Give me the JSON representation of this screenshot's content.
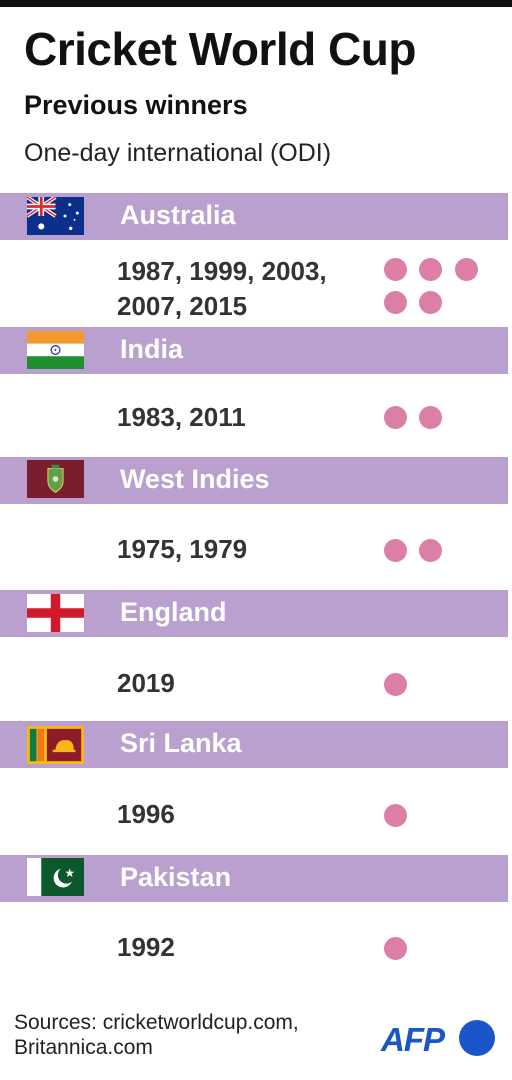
{
  "header": {
    "title": "Cricket World Cup",
    "subtitle": "Previous winners",
    "subtitle2": "One-day international (ODI)"
  },
  "colors": {
    "band": "#b9a0cf",
    "dot": "#dd7ea6",
    "title": "#111111",
    "afp_blue": "#1a56c9"
  },
  "chart_data": {
    "type": "table",
    "title": "Cricket World Cup",
    "rows": [
      {
        "country": "Australia",
        "flag_icon": "australia-flag-icon",
        "years_lines": [
          "1987, 1999, 2003,",
          "2007, 2015"
        ],
        "wins": 5
      },
      {
        "country": "India",
        "flag_icon": "india-flag-icon",
        "years_lines": [
          "1983, 2011"
        ],
        "wins": 2
      },
      {
        "country": "West Indies",
        "flag_icon": "west-indies-flag-icon",
        "years_lines": [
          "1975, 1979"
        ],
        "wins": 2
      },
      {
        "country": "England",
        "flag_icon": "england-flag-icon",
        "years_lines": [
          "2019"
        ],
        "wins": 1
      },
      {
        "country": "Sri Lanka",
        "flag_icon": "sri-lanka-flag-icon",
        "years_lines": [
          "1996"
        ],
        "wins": 1
      },
      {
        "country": "Pakistan",
        "flag_icon": "pakistan-flag-icon",
        "years_lines": [
          "1992"
        ],
        "wins": 1
      }
    ]
  },
  "footer": {
    "source_line1": "Sources: cricketworldcup.com,",
    "source_line2": "Britannica.com",
    "logo_text": "AFP"
  }
}
